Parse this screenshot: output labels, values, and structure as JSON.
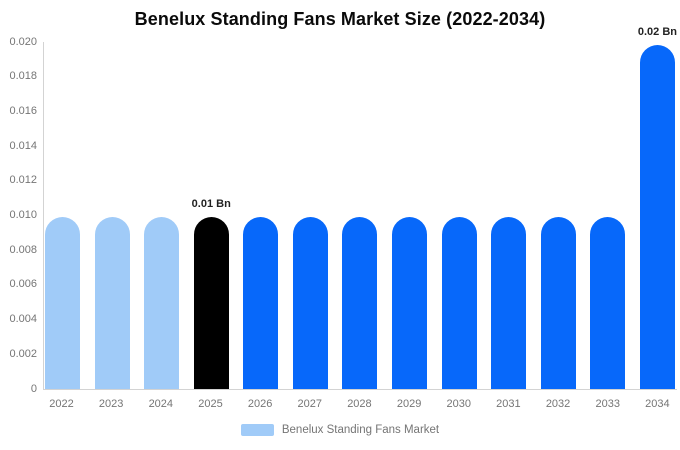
{
  "title": "Benelux Standing Fans Market Size (2022-2034)",
  "legend": {
    "label": "Benelux Standing Fans Market",
    "swatch_color": "#a0cbf8"
  },
  "colors": {
    "light_blue_bar": "#a0cbf8",
    "blue_bar": "#0768fa",
    "black_bar": "#000000",
    "axis_line": "#d3d3d3",
    "tick_text": "#757575",
    "title_text": "#0a0a0a",
    "data_label_text": "#222222",
    "background": "#ffffff"
  },
  "chart_data": {
    "type": "bar",
    "title": "Benelux Standing Fans Market Size (2022-2034)",
    "categories": [
      "2022",
      "2023",
      "2024",
      "2025",
      "2026",
      "2027",
      "2028",
      "2029",
      "2030",
      "2031",
      "2032",
      "2033",
      "2034"
    ],
    "values": [
      0.0099,
      0.0099,
      0.0099,
      0.0099,
      0.0099,
      0.0099,
      0.0099,
      0.0099,
      0.0099,
      0.0099,
      0.0099,
      0.0099,
      0.0198
    ],
    "bar_labels": [
      null,
      null,
      null,
      "0.01 Bn",
      null,
      null,
      null,
      null,
      null,
      null,
      null,
      null,
      "0.02 Bn"
    ],
    "bar_colors": [
      "#a0cbf8",
      "#a0cbf8",
      "#a0cbf8",
      "#000000",
      "#0768fa",
      "#0768fa",
      "#0768fa",
      "#0768fa",
      "#0768fa",
      "#0768fa",
      "#0768fa",
      "#0768fa",
      "#0768fa"
    ],
    "xlabel": "",
    "ylabel": "",
    "ylim": [
      0,
      0.02
    ],
    "yticks": [
      "0",
      "0.002",
      "0.004",
      "0.006",
      "0.008",
      "0.010",
      "0.012",
      "0.014",
      "0.016",
      "0.018",
      "0.020"
    ],
    "grid": false,
    "legend_position": "bottom",
    "units": "Bn"
  }
}
